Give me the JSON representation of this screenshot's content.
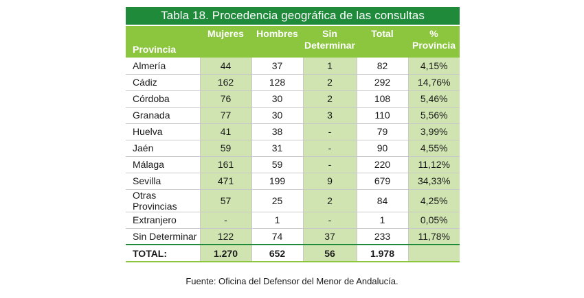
{
  "title": "Tabla 18. Procedencia geográfica de las consultas",
  "headers": {
    "provincia": "Provincia",
    "mujeres": "Mujeres",
    "hombres": "Hombres",
    "sin_line1": "Sin",
    "sin_line2": "Determinar",
    "total": "Total",
    "pct_line1": "%",
    "pct_line2": "Provincia"
  },
  "rows": [
    {
      "provincia": "Almería",
      "mujeres": "44",
      "hombres": "37",
      "sin": "1",
      "total": "82",
      "pct": "4,15%"
    },
    {
      "provincia": "Cádiz",
      "mujeres": "162",
      "hombres": "128",
      "sin": "2",
      "total": "292",
      "pct": "14,76%"
    },
    {
      "provincia": "Córdoba",
      "mujeres": "76",
      "hombres": "30",
      "sin": "2",
      "total": "108",
      "pct": "5,46%"
    },
    {
      "provincia": "Granada",
      "mujeres": "77",
      "hombres": "30",
      "sin": "3",
      "total": "110",
      "pct": "5,56%"
    },
    {
      "provincia": "Huelva",
      "mujeres": "41",
      "hombres": "38",
      "sin": "-",
      "total": "79",
      "pct": "3,99%"
    },
    {
      "provincia": "Jaén",
      "mujeres": "59",
      "hombres": "31",
      "sin": "-",
      "total": "90",
      "pct": "4,55%"
    },
    {
      "provincia": "Málaga",
      "mujeres": "161",
      "hombres": "59",
      "sin": "-",
      "total": "220",
      "pct": "11,12%"
    },
    {
      "provincia": "Sevilla",
      "mujeres": "471",
      "hombres": "199",
      "sin": "9",
      "total": "679",
      "pct": "34,33%"
    },
    {
      "provincia": "Otras Provincias",
      "mujeres": "57",
      "hombres": "25",
      "sin": "2",
      "total": "84",
      "pct": "4,25%"
    },
    {
      "provincia": "Extranjero",
      "mujeres": "-",
      "hombres": "1",
      "sin": "-",
      "total": "1",
      "pct": "0,05%"
    },
    {
      "provincia": "Sin Determinar",
      "mujeres": "122",
      "hombres": "74",
      "sin": "37",
      "total": "233",
      "pct": "11,78%"
    }
  ],
  "totals": {
    "label": "TOTAL:",
    "mujeres": "1.270",
    "hombres": "652",
    "sin": "56",
    "total": "1.978",
    "pct": ""
  },
  "source": "Fuente: Oficina del Defensor del Menor de Andalucía.",
  "colors": {
    "title_bg": "#1f8a3a",
    "header_bg": "#8cc63f",
    "highlight_bg": "#cfe4b0"
  }
}
